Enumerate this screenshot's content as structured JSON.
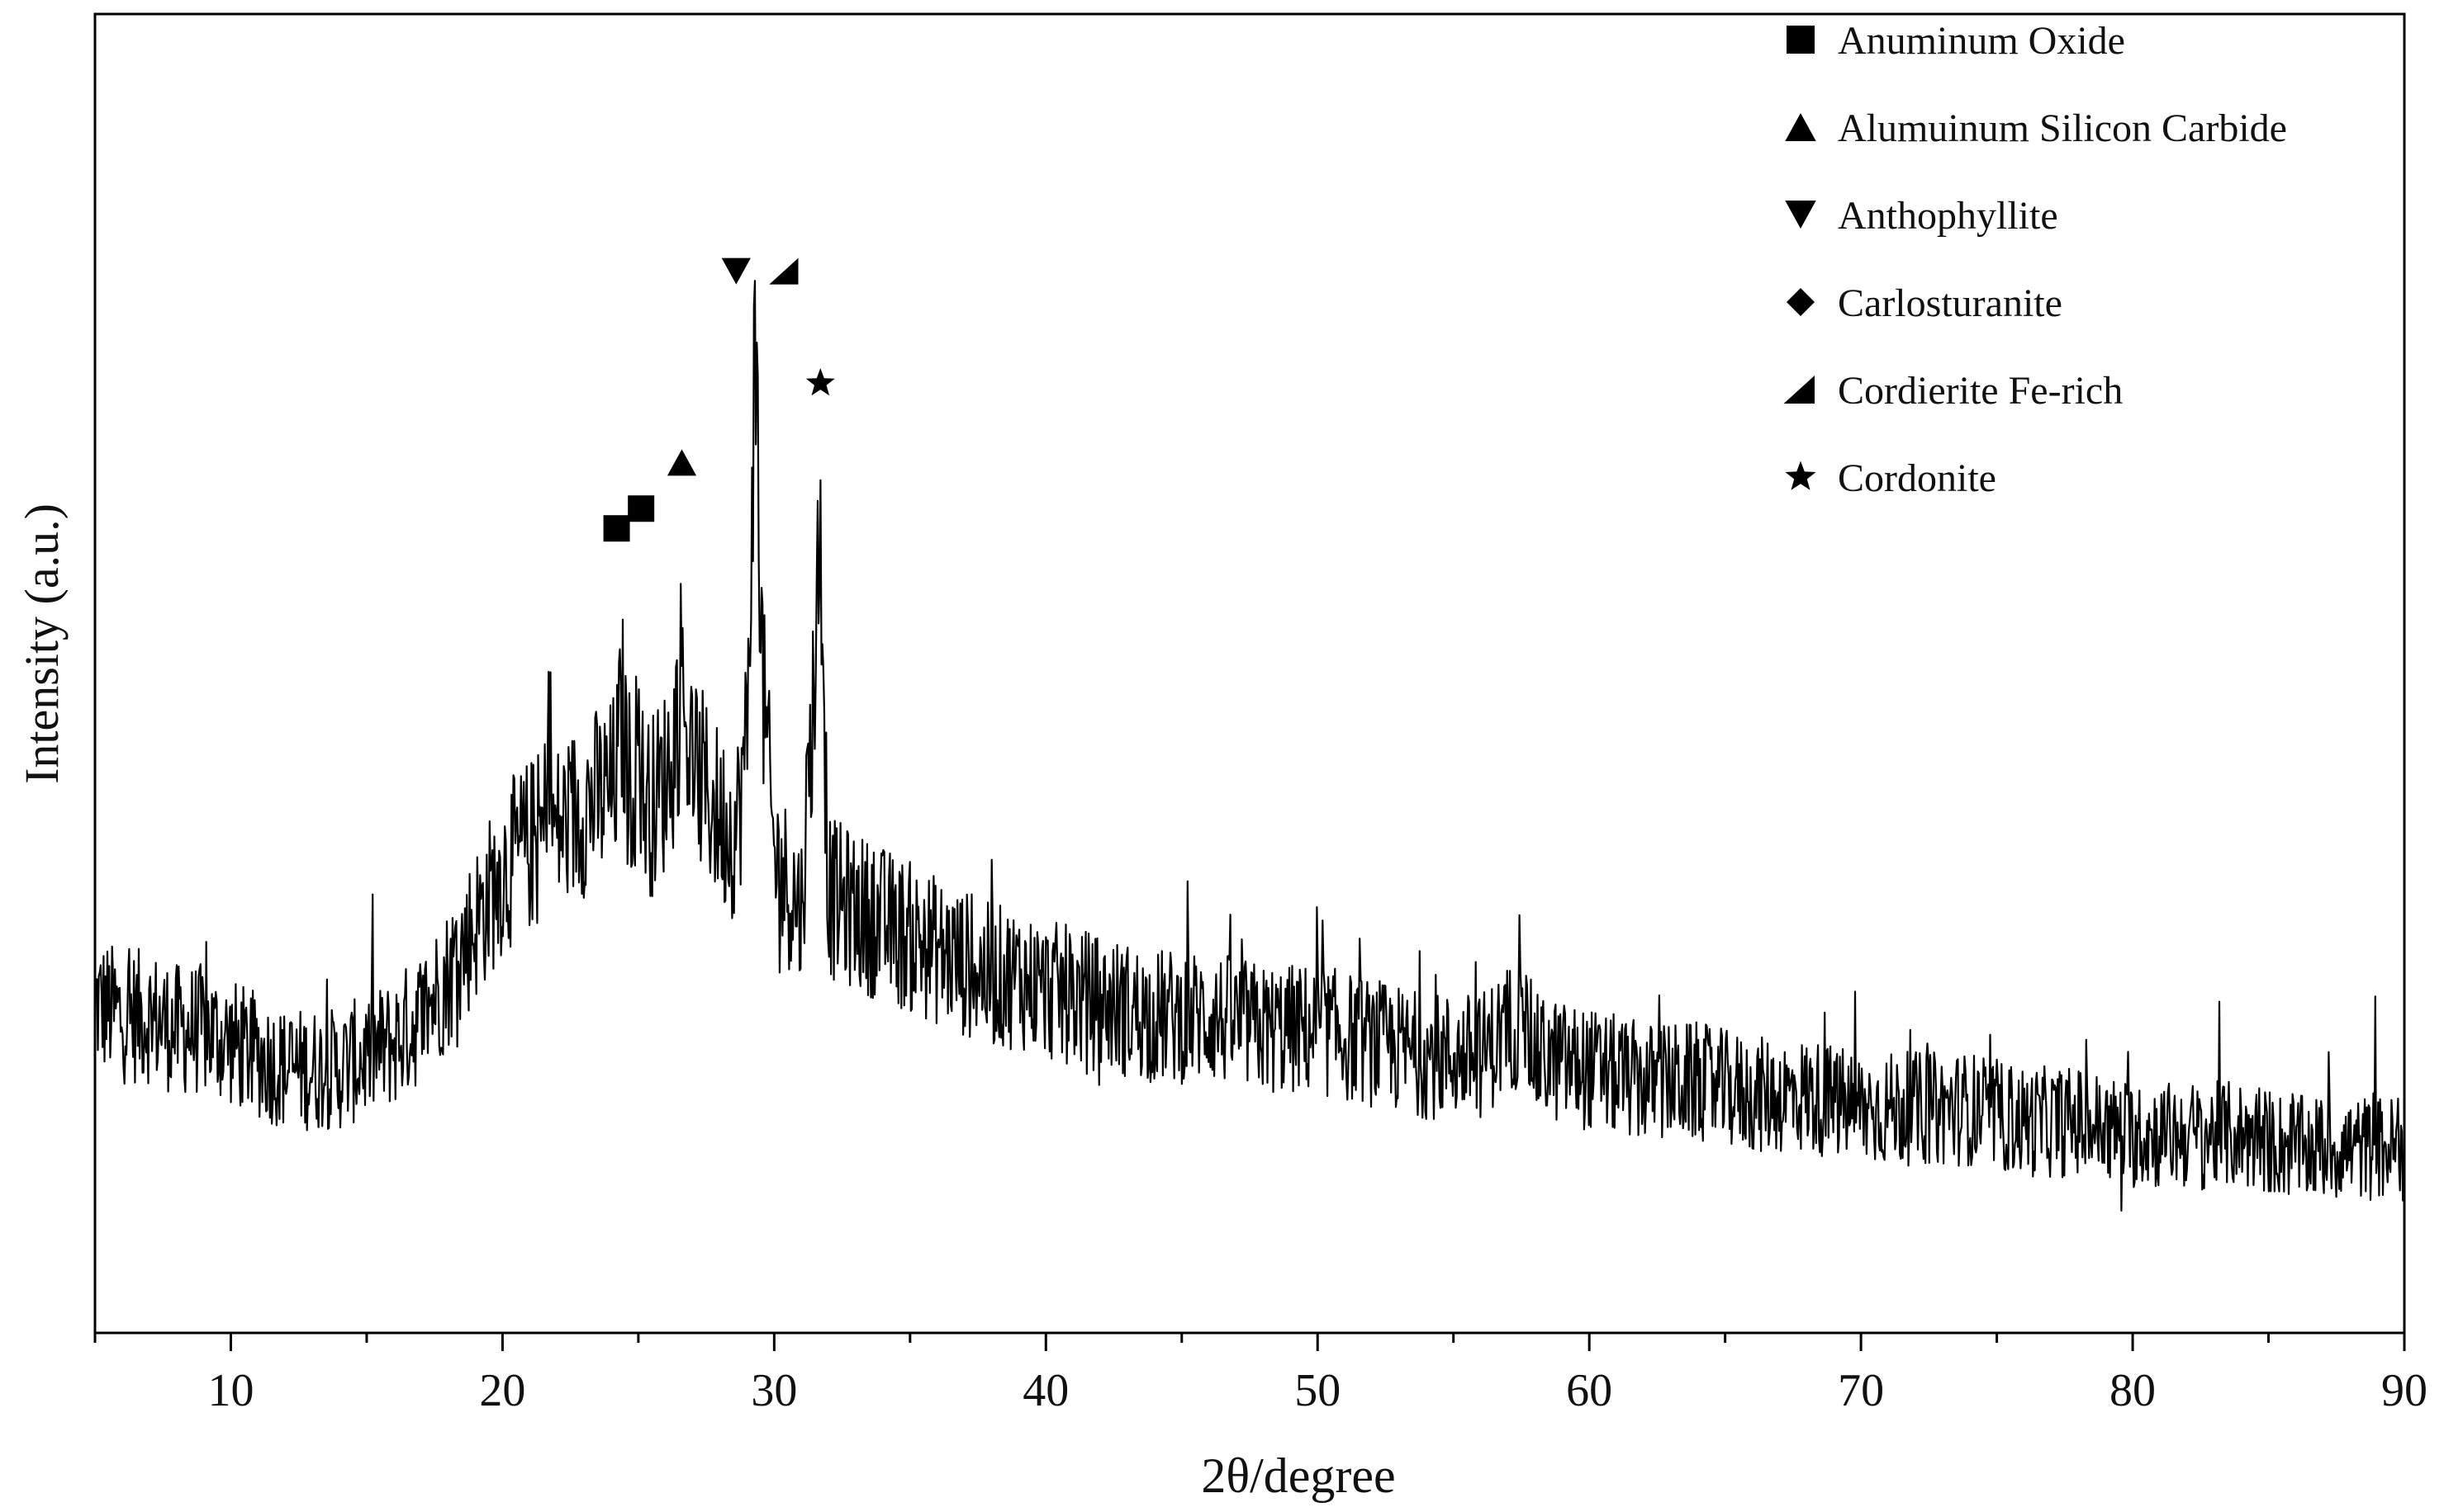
{
  "chart_data": {
    "type": "line",
    "title": "",
    "xlabel": "2θ/degree",
    "ylabel": "Intensity (a.u.)",
    "xlim": [
      5,
      90
    ],
    "ylim": [
      0,
      100
    ],
    "x_major_ticks": [
      10,
      20,
      30,
      40,
      50,
      60,
      70,
      80,
      90
    ],
    "x_minor_step": 5,
    "y_tick_labels": false,
    "grid": false,
    "legend_position": "top-right",
    "colors": {
      "line": "#000000",
      "axis": "#000000",
      "background": "#ffffff"
    },
    "series": [
      {
        "values_description_omitted": true,
        "x": [
          5,
          6,
          7,
          8,
          9,
          10,
          11,
          12,
          13,
          14,
          15,
          16,
          17,
          18,
          19,
          20,
          21,
          21.7,
          22,
          23,
          24,
          24.3,
          25,
          25.5,
          26,
          26.6,
          27,
          28,
          28.6,
          29,
          29.3,
          29.6,
          30,
          31,
          31.7,
          32,
          33,
          34,
          35,
          36,
          37,
          38,
          39,
          40,
          42,
          44,
          46,
          48,
          50,
          52,
          54,
          56,
          57.5,
          58,
          60,
          62,
          64,
          66,
          68,
          70,
          72,
          74,
          76,
          78,
          80,
          82,
          84,
          86,
          88,
          90
        ],
        "y": [
          25,
          24,
          24,
          23,
          23,
          22,
          21,
          20,
          20,
          20,
          21,
          22,
          24,
          27,
          31,
          35,
          37,
          38,
          38,
          40,
          41,
          43,
          41,
          40,
          42,
          48,
          43,
          39,
          38,
          45,
          68,
          48,
          36,
          32,
          58,
          33,
          32,
          31,
          30,
          29,
          28,
          27,
          27,
          26,
          25,
          24,
          24,
          23,
          23,
          22,
          21,
          21,
          24,
          21,
          20,
          19,
          19,
          18,
          18,
          17,
          17,
          17,
          16,
          16,
          15,
          15,
          15,
          14,
          14,
          14
        ]
      }
    ],
    "legend": [
      {
        "marker": "square",
        "label": "Anuminum Oxide"
      },
      {
        "marker": "triangle-up",
        "label": "Alumuinum Silicon Carbide"
      },
      {
        "marker": "triangle-down",
        "label": "Anthophyllite"
      },
      {
        "marker": "diamond",
        "label": "Carlosturanite"
      },
      {
        "marker": "right-triangle",
        "label": "Cordierite Fe-rich"
      },
      {
        "marker": "star",
        "label": "Cordonite"
      }
    ],
    "annotations": [
      {
        "marker": "square",
        "x": 24.2
      },
      {
        "marker": "square",
        "x": 25.1
      },
      {
        "marker": "triangle-up",
        "x": 26.6
      },
      {
        "marker": "triangle-down",
        "x": 28.6
      },
      {
        "marker": "right-triangle",
        "x": 30.4
      },
      {
        "marker": "star",
        "x": 31.7
      }
    ]
  }
}
